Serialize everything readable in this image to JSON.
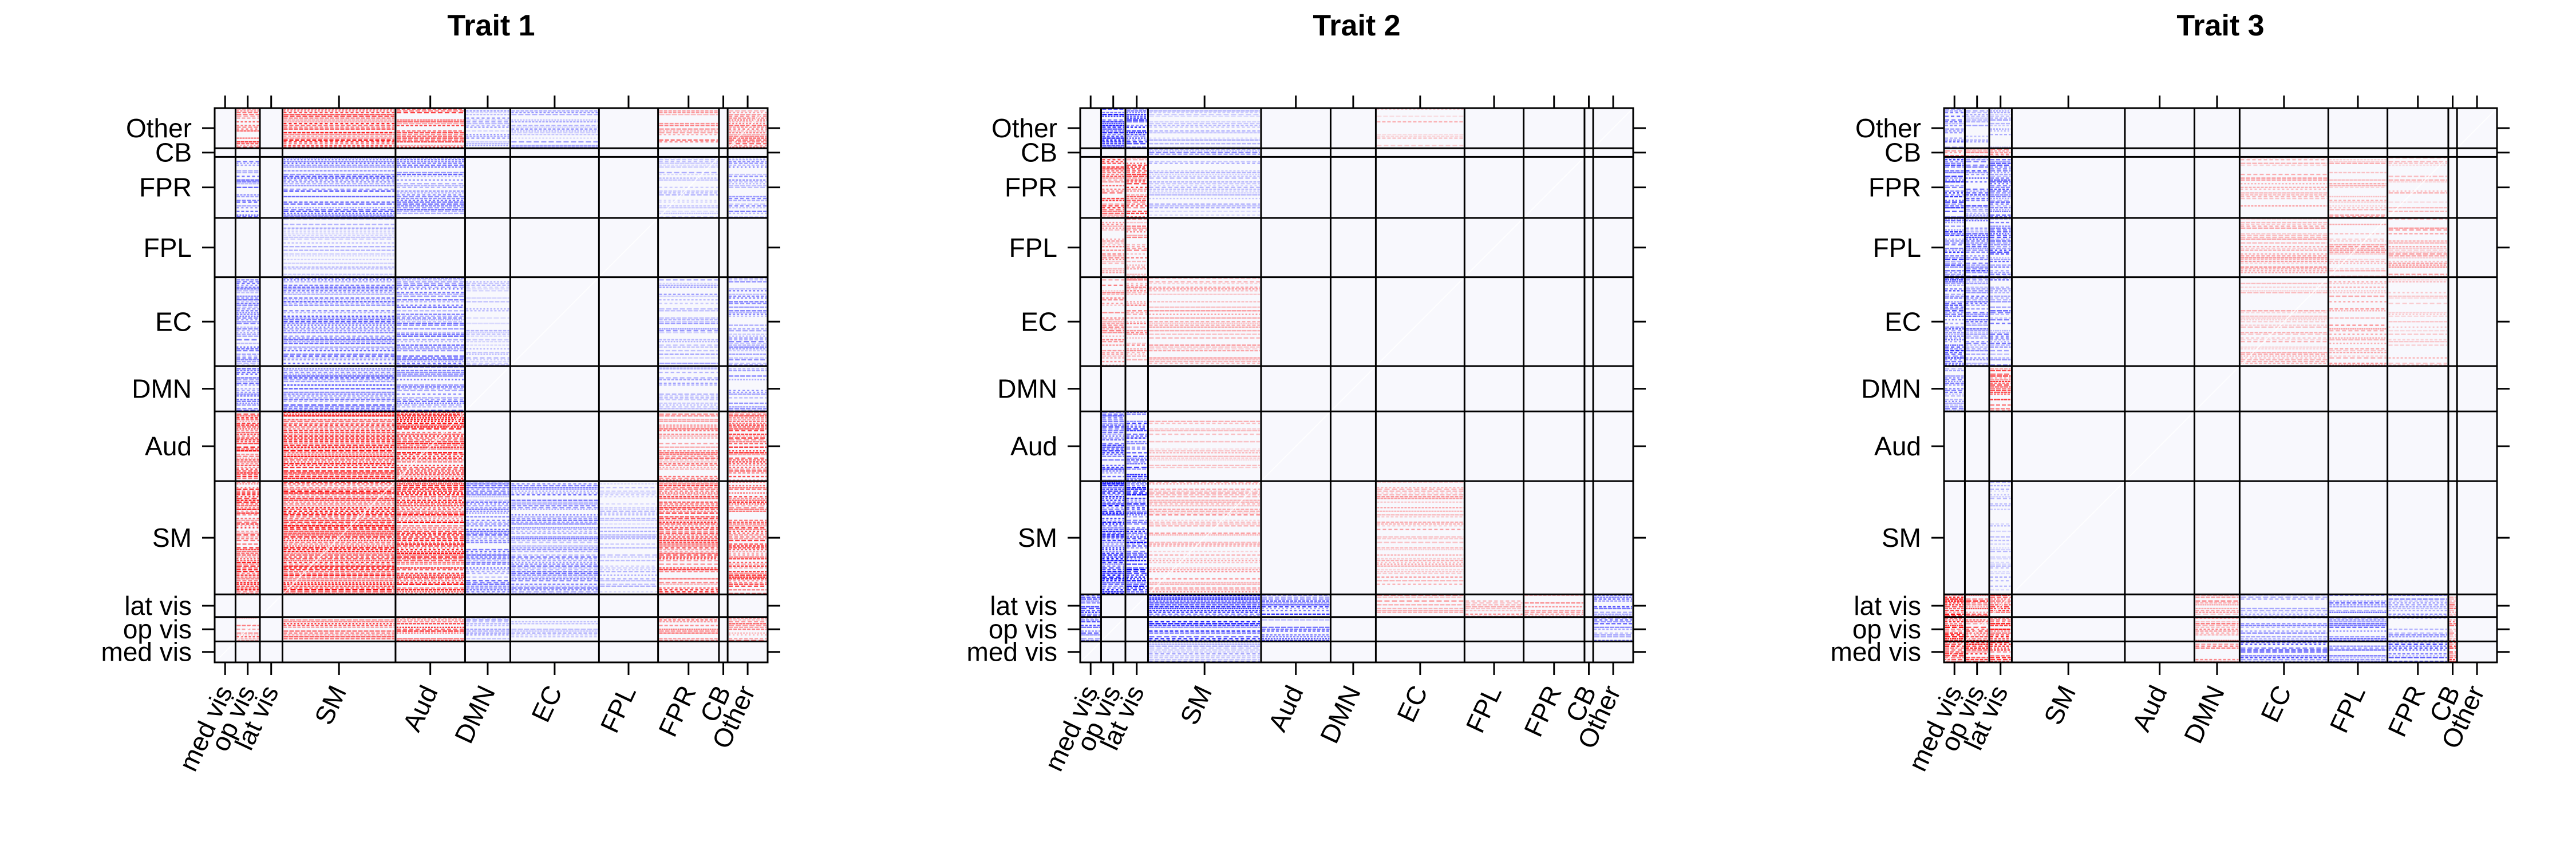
{
  "chart_data": [
    {
      "type": "heatmap",
      "title": "Trait 1",
      "row_labels_top_to_bottom": [
        "Other",
        "CB",
        "FPR",
        "FPL",
        "EC",
        "DMN",
        "Aud",
        "SM",
        "lat vis",
        "op vis",
        "med vis"
      ],
      "col_labels_left_to_right": [
        "med vis",
        "op vis",
        "lat vis",
        "SM",
        "Aud",
        "DMN",
        "EC",
        "FPL",
        "FPR",
        "CB",
        "Other"
      ],
      "color_scale": {
        "negative": "#0000ff",
        "zero": "#ffffff",
        "positive": "#ff0000"
      },
      "blocks": [
        {
          "row": "Other",
          "col": "op vis",
          "sign": "positive",
          "strength": 0.8
        },
        {
          "row": "Other",
          "col": "SM",
          "sign": "positive",
          "strength": 0.9
        },
        {
          "row": "Other",
          "col": "Aud",
          "sign": "positive",
          "strength": 0.8
        },
        {
          "row": "Other",
          "col": "DMN",
          "sign": "negative",
          "strength": 0.4
        },
        {
          "row": "Other",
          "col": "EC",
          "sign": "negative",
          "strength": 0.4
        },
        {
          "row": "Other",
          "col": "FPR",
          "sign": "positive",
          "strength": 0.6
        },
        {
          "row": "Other",
          "col": "Other",
          "sign": "positive",
          "strength": 0.6
        },
        {
          "row": "FPR",
          "col": "op vis",
          "sign": "negative",
          "strength": 0.6
        },
        {
          "row": "FPR",
          "col": "SM",
          "sign": "negative",
          "strength": 0.7
        },
        {
          "row": "FPR",
          "col": "Aud",
          "sign": "negative",
          "strength": 0.6
        },
        {
          "row": "FPR",
          "col": "FPR",
          "sign": "negative",
          "strength": 0.3
        },
        {
          "row": "FPR",
          "col": "Other",
          "sign": "negative",
          "strength": 0.5
        },
        {
          "row": "FPL",
          "col": "SM",
          "sign": "negative",
          "strength": 0.3
        },
        {
          "row": "EC",
          "col": "op vis",
          "sign": "negative",
          "strength": 0.6
        },
        {
          "row": "EC",
          "col": "SM",
          "sign": "negative",
          "strength": 0.7
        },
        {
          "row": "EC",
          "col": "Aud",
          "sign": "negative",
          "strength": 0.6
        },
        {
          "row": "EC",
          "col": "DMN",
          "sign": "negative",
          "strength": 0.3
        },
        {
          "row": "EC",
          "col": "FPR",
          "sign": "negative",
          "strength": 0.4
        },
        {
          "row": "EC",
          "col": "Other",
          "sign": "negative",
          "strength": 0.5
        },
        {
          "row": "DMN",
          "col": "op vis",
          "sign": "negative",
          "strength": 0.6
        },
        {
          "row": "DMN",
          "col": "SM",
          "sign": "negative",
          "strength": 0.7
        },
        {
          "row": "DMN",
          "col": "Aud",
          "sign": "negative",
          "strength": 0.6
        },
        {
          "row": "DMN",
          "col": "FPR",
          "sign": "negative",
          "strength": 0.4
        },
        {
          "row": "DMN",
          "col": "Other",
          "sign": "negative",
          "strength": 0.5
        },
        {
          "row": "Aud",
          "col": "op vis",
          "sign": "positive",
          "strength": 0.9
        },
        {
          "row": "Aud",
          "col": "SM",
          "sign": "positive",
          "strength": 1.0
        },
        {
          "row": "Aud",
          "col": "Aud",
          "sign": "positive",
          "strength": 1.0
        },
        {
          "row": "Aud",
          "col": "FPR",
          "sign": "positive",
          "strength": 0.6
        },
        {
          "row": "Aud",
          "col": "Other",
          "sign": "positive",
          "strength": 0.8
        },
        {
          "row": "SM",
          "col": "op vis",
          "sign": "positive",
          "strength": 0.9
        },
        {
          "row": "SM",
          "col": "SM",
          "sign": "positive",
          "strength": 1.0
        },
        {
          "row": "SM",
          "col": "Aud",
          "sign": "positive",
          "strength": 1.0
        },
        {
          "row": "SM",
          "col": "DMN",
          "sign": "negative",
          "strength": 0.6
        },
        {
          "row": "SM",
          "col": "EC",
          "sign": "negative",
          "strength": 0.6
        },
        {
          "row": "SM",
          "col": "FPL",
          "sign": "negative",
          "strength": 0.3
        },
        {
          "row": "SM",
          "col": "FPR",
          "sign": "positive",
          "strength": 0.8
        },
        {
          "row": "SM",
          "col": "Other",
          "sign": "positive",
          "strength": 0.8
        },
        {
          "row": "op vis",
          "col": "op vis",
          "sign": "positive",
          "strength": 0.6
        },
        {
          "row": "op vis",
          "col": "SM",
          "sign": "positive",
          "strength": 0.9
        },
        {
          "row": "op vis",
          "col": "Aud",
          "sign": "positive",
          "strength": 0.8
        },
        {
          "row": "op vis",
          "col": "DMN",
          "sign": "negative",
          "strength": 0.4
        },
        {
          "row": "op vis",
          "col": "EC",
          "sign": "negative",
          "strength": 0.4
        },
        {
          "row": "op vis",
          "col": "FPR",
          "sign": "positive",
          "strength": 0.6
        },
        {
          "row": "op vis",
          "col": "Other",
          "sign": "positive",
          "strength": 0.6
        }
      ]
    },
    {
      "type": "heatmap",
      "title": "Trait 2",
      "row_labels_top_to_bottom": [
        "Other",
        "CB",
        "FPR",
        "FPL",
        "EC",
        "DMN",
        "Aud",
        "SM",
        "lat vis",
        "op vis",
        "med vis"
      ],
      "col_labels_left_to_right": [
        "med vis",
        "op vis",
        "lat vis",
        "SM",
        "Aud",
        "DMN",
        "EC",
        "FPL",
        "FPR",
        "CB",
        "Other"
      ],
      "color_scale": {
        "negative": "#0000ff",
        "zero": "#ffffff",
        "positive": "#ff0000"
      },
      "blocks": [
        {
          "row": "Other",
          "col": "op vis",
          "sign": "negative",
          "strength": 0.9
        },
        {
          "row": "Other",
          "col": "lat vis",
          "sign": "negative",
          "strength": 0.9
        },
        {
          "row": "Other",
          "col": "SM",
          "sign": "negative",
          "strength": 0.3
        },
        {
          "row": "Other",
          "col": "EC",
          "sign": "positive",
          "strength": 0.3
        },
        {
          "row": "CB",
          "col": "SM",
          "sign": "negative",
          "strength": 0.5
        },
        {
          "row": "FPR",
          "col": "op vis",
          "sign": "positive",
          "strength": 0.8
        },
        {
          "row": "FPR",
          "col": "lat vis",
          "sign": "positive",
          "strength": 0.8
        },
        {
          "row": "FPR",
          "col": "SM",
          "sign": "negative",
          "strength": 0.3
        },
        {
          "row": "FPL",
          "col": "op vis",
          "sign": "positive",
          "strength": 0.5
        },
        {
          "row": "FPL",
          "col": "lat vis",
          "sign": "positive",
          "strength": 0.5
        },
        {
          "row": "EC",
          "col": "op vis",
          "sign": "positive",
          "strength": 0.5
        },
        {
          "row": "EC",
          "col": "lat vis",
          "sign": "positive",
          "strength": 0.5
        },
        {
          "row": "EC",
          "col": "SM",
          "sign": "positive",
          "strength": 0.4
        },
        {
          "row": "Aud",
          "col": "op vis",
          "sign": "negative",
          "strength": 0.8
        },
        {
          "row": "Aud",
          "col": "lat vis",
          "sign": "negative",
          "strength": 0.8
        },
        {
          "row": "Aud",
          "col": "SM",
          "sign": "positive",
          "strength": 0.3
        },
        {
          "row": "SM",
          "col": "op vis",
          "sign": "negative",
          "strength": 1.0
        },
        {
          "row": "SM",
          "col": "lat vis",
          "sign": "negative",
          "strength": 1.0
        },
        {
          "row": "SM",
          "col": "SM",
          "sign": "positive",
          "strength": 0.4
        },
        {
          "row": "SM",
          "col": "EC",
          "sign": "positive",
          "strength": 0.4
        },
        {
          "row": "lat vis",
          "col": "med vis",
          "sign": "negative",
          "strength": 0.8
        },
        {
          "row": "lat vis",
          "col": "SM",
          "sign": "negative",
          "strength": 1.0
        },
        {
          "row": "lat vis",
          "col": "Aud",
          "sign": "negative",
          "strength": 0.8
        },
        {
          "row": "lat vis",
          "col": "EC",
          "sign": "positive",
          "strength": 0.4
        },
        {
          "row": "lat vis",
          "col": "FPL",
          "sign": "positive",
          "strength": 0.5
        },
        {
          "row": "lat vis",
          "col": "FPR",
          "sign": "positive",
          "strength": 0.6
        },
        {
          "row": "lat vis",
          "col": "Other",
          "sign": "negative",
          "strength": 0.7
        },
        {
          "row": "op vis",
          "col": "med vis",
          "sign": "negative",
          "strength": 0.7
        },
        {
          "row": "op vis",
          "col": "SM",
          "sign": "negative",
          "strength": 0.9
        },
        {
          "row": "op vis",
          "col": "Aud",
          "sign": "negative",
          "strength": 0.7
        },
        {
          "row": "op vis",
          "col": "Other",
          "sign": "negative",
          "strength": 0.6
        },
        {
          "row": "med vis",
          "col": "SM",
          "sign": "negative",
          "strength": 0.4
        }
      ]
    },
    {
      "type": "heatmap",
      "title": "Trait 3",
      "row_labels_top_to_bottom": [
        "Other",
        "CB",
        "FPR",
        "FPL",
        "EC",
        "DMN",
        "Aud",
        "SM",
        "lat vis",
        "op vis",
        "med vis"
      ],
      "col_labels_left_to_right": [
        "med vis",
        "op vis",
        "lat vis",
        "SM",
        "Aud",
        "DMN",
        "EC",
        "FPL",
        "FPR",
        "CB",
        "Other"
      ],
      "color_scale": {
        "negative": "#0000ff",
        "zero": "#ffffff",
        "positive": "#ff0000"
      },
      "blocks": [
        {
          "row": "Other",
          "col": "med vis",
          "sign": "negative",
          "strength": 0.6
        },
        {
          "row": "Other",
          "col": "op vis",
          "sign": "negative",
          "strength": 0.4
        },
        {
          "row": "Other",
          "col": "lat vis",
          "sign": "negative",
          "strength": 0.4
        },
        {
          "row": "CB",
          "col": "med vis",
          "sign": "positive",
          "strength": 0.9
        },
        {
          "row": "CB",
          "col": "op vis",
          "sign": "positive",
          "strength": 0.7
        },
        {
          "row": "CB",
          "col": "lat vis",
          "sign": "positive",
          "strength": 0.7
        },
        {
          "row": "FPR",
          "col": "med vis",
          "sign": "negative",
          "strength": 0.8
        },
        {
          "row": "FPR",
          "col": "op vis",
          "sign": "negative",
          "strength": 0.7
        },
        {
          "row": "FPR",
          "col": "lat vis",
          "sign": "negative",
          "strength": 0.7
        },
        {
          "row": "FPR",
          "col": "EC",
          "sign": "positive",
          "strength": 0.4
        },
        {
          "row": "FPR",
          "col": "FPL",
          "sign": "positive",
          "strength": 0.4
        },
        {
          "row": "FPR",
          "col": "FPR",
          "sign": "positive",
          "strength": 0.3
        },
        {
          "row": "FPL",
          "col": "med vis",
          "sign": "negative",
          "strength": 0.8
        },
        {
          "row": "FPL",
          "col": "op vis",
          "sign": "negative",
          "strength": 0.7
        },
        {
          "row": "FPL",
          "col": "lat vis",
          "sign": "negative",
          "strength": 0.7
        },
        {
          "row": "FPL",
          "col": "EC",
          "sign": "positive",
          "strength": 0.4
        },
        {
          "row": "FPL",
          "col": "FPL",
          "sign": "positive",
          "strength": 0.4
        },
        {
          "row": "FPL",
          "col": "FPR",
          "sign": "positive",
          "strength": 0.4
        },
        {
          "row": "EC",
          "col": "med vis",
          "sign": "negative",
          "strength": 0.8
        },
        {
          "row": "EC",
          "col": "op vis",
          "sign": "negative",
          "strength": 0.6
        },
        {
          "row": "EC",
          "col": "lat vis",
          "sign": "negative",
          "strength": 0.6
        },
        {
          "row": "EC",
          "col": "EC",
          "sign": "positive",
          "strength": 0.3
        },
        {
          "row": "EC",
          "col": "FPL",
          "sign": "positive",
          "strength": 0.4
        },
        {
          "row": "EC",
          "col": "FPR",
          "sign": "positive",
          "strength": 0.3
        },
        {
          "row": "DMN",
          "col": "med vis",
          "sign": "negative",
          "strength": 0.5
        },
        {
          "row": "DMN",
          "col": "lat vis",
          "sign": "positive",
          "strength": 0.8
        },
        {
          "row": "SM",
          "col": "lat vis",
          "sign": "negative",
          "strength": 0.3
        },
        {
          "row": "lat vis",
          "col": "med vis",
          "sign": "positive",
          "strength": 1.0
        },
        {
          "row": "lat vis",
          "col": "op vis",
          "sign": "positive",
          "strength": 0.9
        },
        {
          "row": "lat vis",
          "col": "lat vis",
          "sign": "positive",
          "strength": 0.9
        },
        {
          "row": "lat vis",
          "col": "DMN",
          "sign": "positive",
          "strength": 0.5
        },
        {
          "row": "lat vis",
          "col": "EC",
          "sign": "negative",
          "strength": 0.4
        },
        {
          "row": "lat vis",
          "col": "FPL",
          "sign": "negative",
          "strength": 0.6
        },
        {
          "row": "lat vis",
          "col": "FPR",
          "sign": "negative",
          "strength": 0.5
        },
        {
          "row": "lat vis",
          "col": "CB",
          "sign": "positive",
          "strength": 0.6
        },
        {
          "row": "op vis",
          "col": "med vis",
          "sign": "positive",
          "strength": 1.0
        },
        {
          "row": "op vis",
          "col": "op vis",
          "sign": "positive",
          "strength": 0.9
        },
        {
          "row": "op vis",
          "col": "lat vis",
          "sign": "positive",
          "strength": 0.9
        },
        {
          "row": "op vis",
          "col": "DMN",
          "sign": "positive",
          "strength": 0.5
        },
        {
          "row": "op vis",
          "col": "EC",
          "sign": "negative",
          "strength": 0.5
        },
        {
          "row": "op vis",
          "col": "FPL",
          "sign": "negative",
          "strength": 0.6
        },
        {
          "row": "op vis",
          "col": "FPR",
          "sign": "negative",
          "strength": 0.5
        },
        {
          "row": "op vis",
          "col": "CB",
          "sign": "positive",
          "strength": 0.6
        },
        {
          "row": "med vis",
          "col": "med vis",
          "sign": "positive",
          "strength": 1.0
        },
        {
          "row": "med vis",
          "col": "op vis",
          "sign": "positive",
          "strength": 1.0
        },
        {
          "row": "med vis",
          "col": "lat vis",
          "sign": "positive",
          "strength": 1.0
        },
        {
          "row": "med vis",
          "col": "DMN",
          "sign": "positive",
          "strength": 0.5
        },
        {
          "row": "med vis",
          "col": "EC",
          "sign": "negative",
          "strength": 0.8
        },
        {
          "row": "med vis",
          "col": "FPL",
          "sign": "negative",
          "strength": 0.7
        },
        {
          "row": "med vis",
          "col": "FPR",
          "sign": "negative",
          "strength": 0.7
        },
        {
          "row": "med vis",
          "col": "CB",
          "sign": "positive",
          "strength": 0.8
        }
      ]
    }
  ]
}
